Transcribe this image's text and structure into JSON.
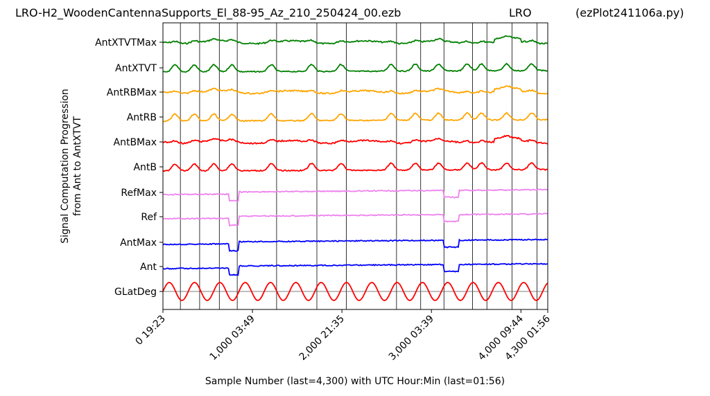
{
  "header": {
    "file": "LRO-H2_WoodenCantennaSupports_El_88-95_Az_210_250424_00.ezb",
    "station": "LRO",
    "script": "(ezPlot241106a.py)"
  },
  "chart_data": {
    "type": "line",
    "title": "LRO-H2_WoodenCantennaSupports_El_88-95_Az_210_250424_00.ezb",
    "xlabel": "Sample Number (last=4,300) with UTC Hour:Min (last=01:56)",
    "ylabel_line1": "Signal Computation Progression",
    "ylabel_line2": "from Ant to AntXTVT",
    "xlim": [
      0,
      4300
    ],
    "x_ticks": [
      {
        "x": 0,
        "label": "0  19:23"
      },
      {
        "x": 1000,
        "label": "1,000  03:49"
      },
      {
        "x": 2000,
        "label": "2,000  21:35"
      },
      {
        "x": 3000,
        "label": "3,000  03:39"
      },
      {
        "x": 4000,
        "label": "4,000  09:44"
      },
      {
        "x": 4300,
        "label": "4,300  01:56"
      }
    ],
    "series_labels": [
      "AntXTVTMax",
      "AntXTVT",
      "AntRBMax",
      "AntRB",
      "AntBMax",
      "AntB",
      "RefMax",
      "Ref",
      "AntMax",
      "Ant",
      "GLatDeg"
    ],
    "series_colors": [
      "#008000",
      "#008000",
      "#ffa500",
      "#ffa500",
      "#ff0000",
      "#ff0000",
      "#ee82ee",
      "#ee82ee",
      "#0000ff",
      "#0000ff",
      "#ff0000"
    ],
    "vertical_lines_x": [
      195,
      410,
      630,
      830,
      1270,
      1720,
      2050,
      2610,
      2880,
      3140,
      3460,
      3620,
      3900,
      4180
    ],
    "step_events": [
      {
        "x_start": 740,
        "x_end": 850,
        "level_change": "drop"
      },
      {
        "x_start": 3140,
        "x_end": 3300,
        "level_change": "drop"
      }
    ],
    "grid": false,
    "legend": "none"
  }
}
